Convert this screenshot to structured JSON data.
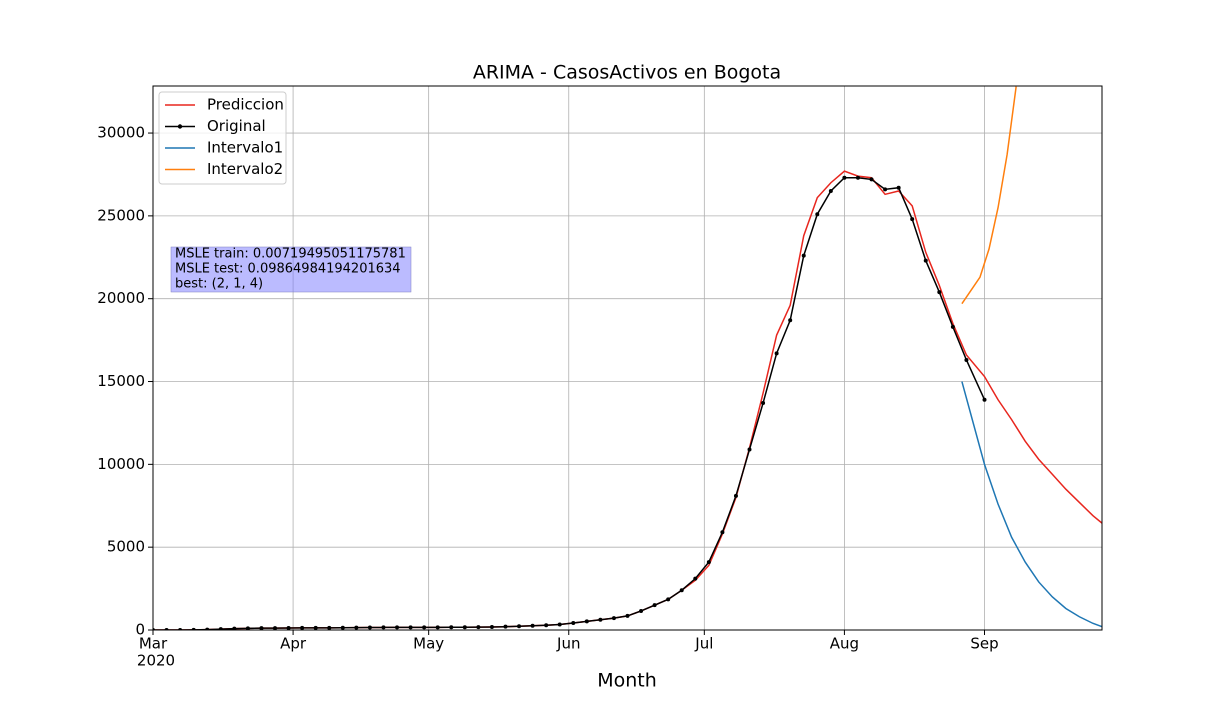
{
  "chart_data": {
    "type": "line",
    "title": "ARIMA - CasosActivos en Bogota",
    "xlabel": "Month",
    "x_year_label": "2020",
    "xlim": [
      "2020-03-01",
      "2020-09-27"
    ],
    "xticks": [
      {
        "value": "2020-03-01",
        "label": "Mar"
      },
      {
        "value": "2020-04-01",
        "label": "Apr"
      },
      {
        "value": "2020-05-01",
        "label": "May"
      },
      {
        "value": "2020-06-01",
        "label": "Jun"
      },
      {
        "value": "2020-07-01",
        "label": "Jul"
      },
      {
        "value": "2020-08-01",
        "label": "Aug"
      },
      {
        "value": "2020-09-01",
        "label": "Sep"
      }
    ],
    "ylim": [
      0,
      32840
    ],
    "yticks": [
      0,
      5000,
      10000,
      15000,
      20000,
      25000,
      30000
    ],
    "grid": true,
    "legend": "upper left",
    "annotation": [
      "MSLE train: 0.00719495051175781",
      "MSLE test: 0.09864984194201634",
      "best: (2, 1, 4)"
    ],
    "series": [
      {
        "name": "Prediccion",
        "color": "#e8261e",
        "marker": false,
        "x": [
          "2020-03-01",
          "2020-03-04",
          "2020-03-07",
          "2020-03-10",
          "2020-03-13",
          "2020-03-16",
          "2020-03-19",
          "2020-03-22",
          "2020-03-25",
          "2020-03-28",
          "2020-03-31",
          "2020-04-03",
          "2020-04-06",
          "2020-04-09",
          "2020-04-12",
          "2020-04-15",
          "2020-04-18",
          "2020-04-21",
          "2020-04-24",
          "2020-04-27",
          "2020-04-30",
          "2020-05-03",
          "2020-05-06",
          "2020-05-09",
          "2020-05-12",
          "2020-05-15",
          "2020-05-18",
          "2020-05-21",
          "2020-05-24",
          "2020-05-27",
          "2020-05-30",
          "2020-06-02",
          "2020-06-05",
          "2020-06-08",
          "2020-06-11",
          "2020-06-14",
          "2020-06-17",
          "2020-06-20",
          "2020-06-23",
          "2020-06-26",
          "2020-06-29",
          "2020-07-02",
          "2020-07-05",
          "2020-07-08",
          "2020-07-11",
          "2020-07-14",
          "2020-07-17",
          "2020-07-20",
          "2020-07-23",
          "2020-07-26",
          "2020-07-29",
          "2020-08-01",
          "2020-08-04",
          "2020-08-07",
          "2020-08-10",
          "2020-08-13",
          "2020-08-16",
          "2020-08-19",
          "2020-08-22",
          "2020-08-25",
          "2020-08-28",
          "2020-09-01",
          "2020-09-04",
          "2020-09-07",
          "2020-09-10",
          "2020-09-13",
          "2020-09-16",
          "2020-09-19",
          "2020-09-22",
          "2020-09-25",
          "2020-09-27"
        ],
        "values": [
          0,
          0,
          0,
          5,
          20,
          50,
          80,
          100,
          110,
          115,
          120,
          125,
          130,
          130,
          135,
          140,
          150,
          155,
          160,
          160,
          160,
          160,
          165,
          165,
          170,
          180,
          200,
          230,
          260,
          290,
          330,
          420,
          520,
          620,
          720,
          850,
          1150,
          1500,
          1850,
          2400,
          3000,
          3900,
          5800,
          8000,
          11000,
          14300,
          17800,
          19600,
          23800,
          26100,
          27000,
          27700,
          27400,
          27300,
          26300,
          26500,
          25600,
          22800,
          20800,
          18500,
          16600,
          15300,
          13900,
          12700,
          11400,
          10300,
          9400,
          8500,
          7700,
          6900,
          6450
        ]
      },
      {
        "name": "Original",
        "color": "#000000",
        "marker": true,
        "x": [
          "2020-03-01",
          "2020-03-04",
          "2020-03-07",
          "2020-03-10",
          "2020-03-13",
          "2020-03-16",
          "2020-03-19",
          "2020-03-22",
          "2020-03-25",
          "2020-03-28",
          "2020-03-31",
          "2020-04-03",
          "2020-04-06",
          "2020-04-09",
          "2020-04-12",
          "2020-04-15",
          "2020-04-18",
          "2020-04-21",
          "2020-04-24",
          "2020-04-27",
          "2020-04-30",
          "2020-05-03",
          "2020-05-06",
          "2020-05-09",
          "2020-05-12",
          "2020-05-15",
          "2020-05-18",
          "2020-05-21",
          "2020-05-24",
          "2020-05-27",
          "2020-05-30",
          "2020-06-02",
          "2020-06-05",
          "2020-06-08",
          "2020-06-11",
          "2020-06-14",
          "2020-06-17",
          "2020-06-20",
          "2020-06-23",
          "2020-06-26",
          "2020-06-29",
          "2020-07-02",
          "2020-07-05",
          "2020-07-08",
          "2020-07-11",
          "2020-07-14",
          "2020-07-17",
          "2020-07-20",
          "2020-07-23",
          "2020-07-26",
          "2020-07-29",
          "2020-08-01",
          "2020-08-04",
          "2020-08-07",
          "2020-08-10",
          "2020-08-13",
          "2020-08-16",
          "2020-08-19",
          "2020-08-22",
          "2020-08-25",
          "2020-08-28",
          "2020-09-01"
        ],
        "values": [
          0,
          0,
          0,
          5,
          20,
          50,
          80,
          100,
          110,
          115,
          120,
          125,
          130,
          130,
          135,
          140,
          150,
          155,
          160,
          160,
          160,
          160,
          165,
          165,
          170,
          180,
          200,
          230,
          260,
          290,
          330,
          420,
          520,
          620,
          720,
          850,
          1150,
          1500,
          1850,
          2400,
          3100,
          4100,
          5900,
          8100,
          10900,
          13700,
          16700,
          18700,
          22600,
          25100,
          26500,
          27300,
          27300,
          27200,
          26600,
          26700,
          24800,
          22300,
          20400,
          18300,
          16300,
          13900
        ]
      },
      {
        "name": "Intervalo1",
        "color": "#1f77b4",
        "marker": false,
        "x": [
          "2020-08-27",
          "2020-09-01",
          "2020-09-04",
          "2020-09-07",
          "2020-09-10",
          "2020-09-13",
          "2020-09-16",
          "2020-09-19",
          "2020-09-22",
          "2020-09-25",
          "2020-09-27"
        ],
        "values": [
          15000,
          10000,
          7600,
          5600,
          4100,
          2900,
          2000,
          1300,
          800,
          400,
          200
        ]
      },
      {
        "name": "Intervalo2",
        "color": "#ff7f0e",
        "marker": false,
        "x": [
          "2020-08-27",
          "2020-08-29",
          "2020-08-31",
          "2020-09-02",
          "2020-09-04",
          "2020-09-06",
          "2020-09-08"
        ],
        "values": [
          19700,
          20500,
          21300,
          23000,
          25500,
          28700,
          32800
        ]
      }
    ]
  }
}
